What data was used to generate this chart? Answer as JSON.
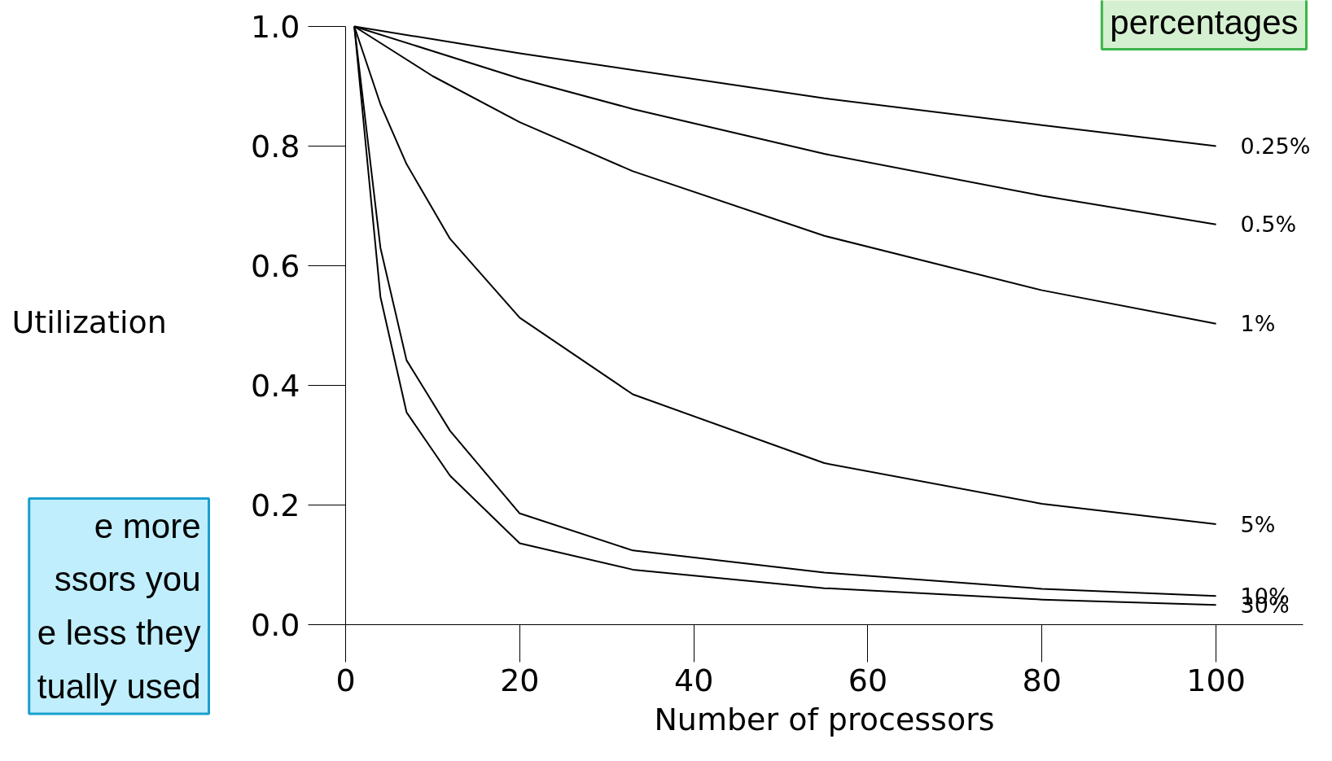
{
  "chart_data": {
    "type": "line",
    "xlabel": "Number of processors",
    "ylabel": "Utilization",
    "xlim": [
      0,
      110
    ],
    "ylim": [
      0,
      1.0
    ],
    "xticks": [
      0,
      20,
      40,
      60,
      80,
      100
    ],
    "yticks": [
      {
        "value": 0,
        "label": "0.0"
      },
      0.2,
      0.4,
      0.6,
      0.8,
      {
        "value": 1,
        "label": "1.0"
      }
    ],
    "grid": false,
    "marker": "none",
    "line_style": "solid",
    "series": [
      {
        "name": "0.25%",
        "color": "#000000",
        "x": [
          1,
          20,
          55,
          80,
          100
        ],
        "values": [
          1.0,
          0.955,
          0.88,
          0.835,
          0.8
        ]
      },
      {
        "name": "0.5%",
        "color": "#000000",
        "x": [
          1,
          20,
          33,
          55,
          80,
          100
        ],
        "values": [
          1.0,
          0.913,
          0.862,
          0.787,
          0.717,
          0.669
        ]
      },
      {
        "name": "1%",
        "color": "#000000",
        "x": [
          1,
          10,
          20,
          33,
          55,
          80,
          100
        ],
        "values": [
          1.0,
          0.917,
          0.84,
          0.758,
          0.65,
          0.559,
          0.503
        ]
      },
      {
        "name": "5%",
        "color": "#000000",
        "x": [
          1,
          4,
          7,
          12,
          20,
          33,
          55,
          80,
          100
        ],
        "values": [
          1.0,
          0.87,
          0.77,
          0.645,
          0.513,
          0.385,
          0.27,
          0.202,
          0.168
        ]
      },
      {
        "name": "10%",
        "color": "#000000",
        "x": [
          1,
          4,
          7,
          12,
          20,
          33,
          55,
          80,
          100
        ],
        "values": [
          1.0,
          0.63,
          0.442,
          0.324,
          0.186,
          0.124,
          0.087,
          0.06,
          0.048
        ]
      },
      {
        "name": "30%",
        "color": "#000000",
        "x": [
          1,
          4,
          7,
          12,
          20,
          33,
          55,
          80,
          100
        ],
        "values": [
          1.0,
          0.548,
          0.355,
          0.249,
          0.136,
          0.092,
          0.061,
          0.042,
          0.033
        ]
      }
    ],
    "annotations": [
      "percentages",
      "e more\nssors you\ne less they\ntually used"
    ]
  }
}
